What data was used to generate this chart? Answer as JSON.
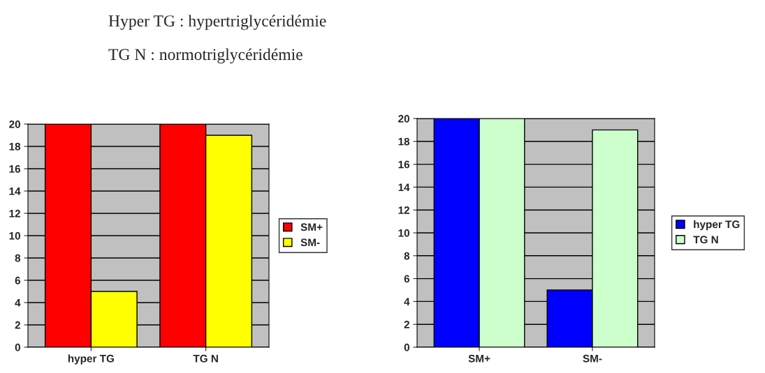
{
  "chart_data": [
    {
      "type": "bar",
      "categories": [
        "hyper TG",
        "TG N"
      ],
      "annotations": [
        "Hyper TG : hypertriglycéridémie",
        "TG N : normotriglycéridémie"
      ],
      "series": [
        {
          "name": "SM+",
          "color": "#ff0000",
          "values": [
            20,
            20
          ]
        },
        {
          "name": "SM-",
          "color": "#ffff00",
          "values": [
            5,
            19
          ]
        }
      ],
      "ylim": [
        0,
        20
      ],
      "yticks": [
        0,
        2,
        4,
        6,
        8,
        10,
        12,
        14,
        16,
        18,
        20
      ],
      "grid": "y",
      "legend": "right"
    },
    {
      "type": "bar",
      "categories": [
        "SM+",
        "SM-"
      ],
      "series": [
        {
          "name": "hyper TG",
          "color": "#0000ff",
          "values": [
            20,
            5
          ]
        },
        {
          "name": "TG N",
          "color": "#ccffcc",
          "values": [
            20,
            19
          ]
        }
      ],
      "ylim": [
        0,
        20
      ],
      "yticks": [
        0,
        2,
        4,
        6,
        8,
        10,
        12,
        14,
        16,
        18,
        20
      ],
      "grid": "y",
      "legend": "right"
    }
  ]
}
